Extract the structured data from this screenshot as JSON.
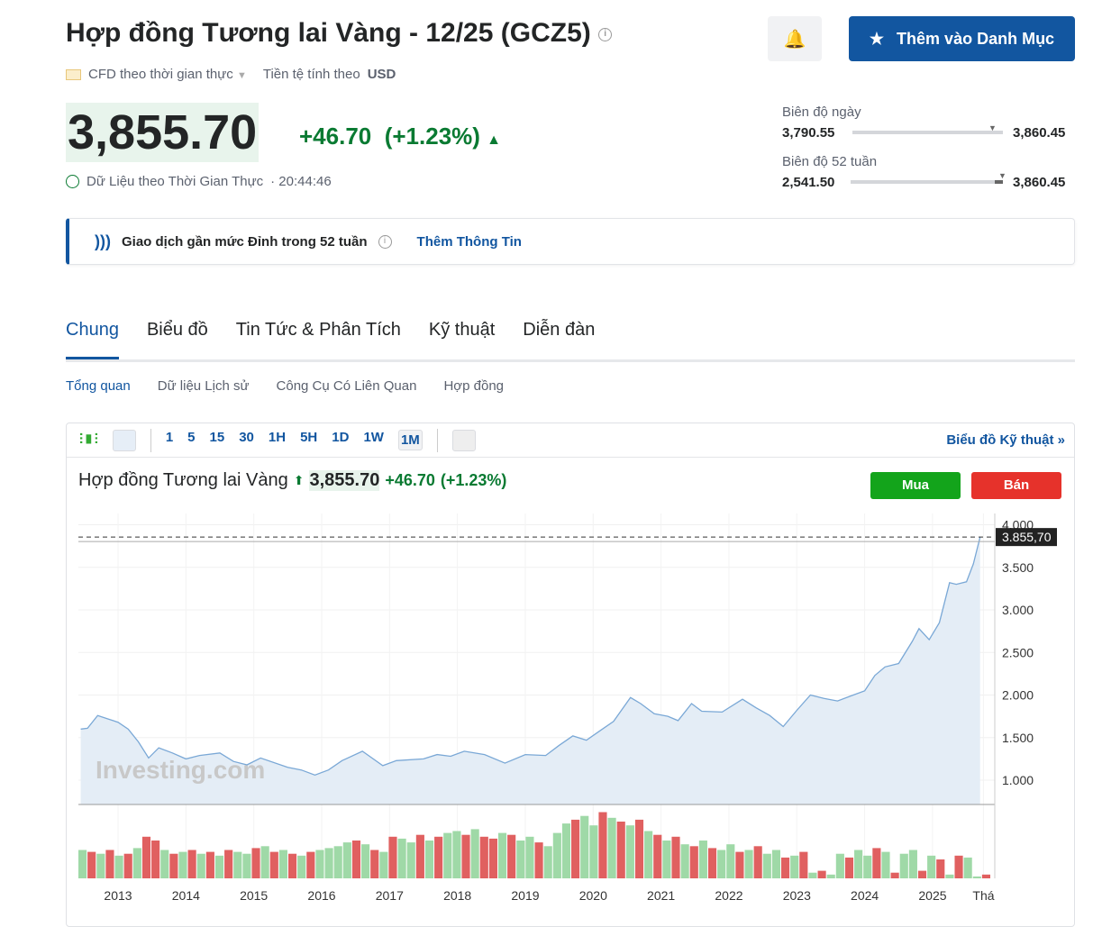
{
  "header": {
    "title": "Hợp đồng Tương lai Vàng - 12/25 (GCZ5)",
    "cfd_label": "CFD theo thời gian thực",
    "currency_label": "Tiền tệ tính theo",
    "currency": "USD",
    "watchlist_button": "Thêm vào Danh Mục"
  },
  "quote": {
    "price": "3,855.70",
    "change": "+46.70",
    "change_pct": "(+1.23%)",
    "realtime_label": "Dữ Liệu theo Thời Gian Thực",
    "time": "· 20:44:46"
  },
  "ranges": {
    "day_label": "Biên độ ngày",
    "day_low": "3,790.55",
    "day_high": "3,860.45",
    "day_position": 0.92,
    "week52_label": "Biên độ 52 tuần",
    "week52_low": "2,541.50",
    "week52_high": "3,860.45",
    "week52_position": 0.99
  },
  "alert": {
    "text": "Giao dịch gần mức Đỉnh trong 52 tuần",
    "link": "Thêm Thông Tin"
  },
  "tabs": [
    "Chung",
    "Biểu đồ",
    "Tin Tức & Phân Tích",
    "Kỹ thuật",
    "Diễn đàn"
  ],
  "subtabs": [
    "Tổng quan",
    "Dữ liệu Lịch sử",
    "Công Cụ Có Liên Quan",
    "Hợp đồng"
  ],
  "toolbar": {
    "intervals": [
      "1",
      "5",
      "15",
      "30",
      "1H",
      "5H",
      "1D",
      "1W",
      "1M"
    ],
    "selected": "1M",
    "tech_chart_link": "Biểu đồ Kỹ thuật »"
  },
  "chart_header": {
    "name": "Hợp đồng Tương lai Vàng",
    "price": "3,855.70",
    "change": "+46.70",
    "change_pct": "(+1.23%)",
    "buy": "Mua",
    "sell": "Bán"
  },
  "colors": {
    "accent": "#1256a0",
    "up": "#0a7a32",
    "buy": "#13a41b",
    "sell": "#e6322b",
    "line": "#7aa8d6",
    "area": "#e4edf6"
  },
  "chart_data": {
    "type": "area",
    "watermark": "Investing.com",
    "last_label": "3.855,70",
    "y_ticks": [
      "4.000",
      "3.500",
      "3.000",
      "2.500",
      "2.000",
      "1.500",
      "1.000"
    ],
    "y_tick_values": [
      4000,
      3500,
      3000,
      2500,
      2000,
      1500,
      1000
    ],
    "x_ticks": [
      "2013",
      "2014",
      "2015",
      "2016",
      "2017",
      "2018",
      "2019",
      "2020",
      "2021",
      "2022",
      "2023",
      "2024",
      "2025",
      "Thá"
    ],
    "x_tick_values": [
      2013,
      2014,
      2015,
      2016,
      2017,
      2018,
      2019,
      2020,
      2021,
      2022,
      2023,
      2024,
      2025,
      2025.75
    ],
    "price": [
      [
        2012.45,
        1600
      ],
      [
        2012.55,
        1610
      ],
      [
        2012.7,
        1760
      ],
      [
        2012.85,
        1720
      ],
      [
        2013.0,
        1680
      ],
      [
        2013.15,
        1600
      ],
      [
        2013.3,
        1450
      ],
      [
        2013.45,
        1260
      ],
      [
        2013.6,
        1380
      ],
      [
        2013.8,
        1320
      ],
      [
        2014.0,
        1250
      ],
      [
        2014.2,
        1290
      ],
      [
        2014.5,
        1320
      ],
      [
        2014.7,
        1220
      ],
      [
        2014.9,
        1180
      ],
      [
        2015.1,
        1260
      ],
      [
        2015.5,
        1150
      ],
      [
        2015.7,
        1120
      ],
      [
        2015.9,
        1060
      ],
      [
        2016.1,
        1120
      ],
      [
        2016.3,
        1230
      ],
      [
        2016.6,
        1340
      ],
      [
        2016.9,
        1170
      ],
      [
        2017.1,
        1230
      ],
      [
        2017.5,
        1250
      ],
      [
        2017.7,
        1300
      ],
      [
        2017.9,
        1280
      ],
      [
        2018.1,
        1340
      ],
      [
        2018.4,
        1300
      ],
      [
        2018.7,
        1200
      ],
      [
        2019.0,
        1300
      ],
      [
        2019.3,
        1290
      ],
      [
        2019.5,
        1410
      ],
      [
        2019.7,
        1520
      ],
      [
        2019.9,
        1470
      ],
      [
        2020.1,
        1580
      ],
      [
        2020.3,
        1690
      ],
      [
        2020.55,
        1970
      ],
      [
        2020.7,
        1900
      ],
      [
        2020.9,
        1780
      ],
      [
        2021.1,
        1750
      ],
      [
        2021.25,
        1700
      ],
      [
        2021.45,
        1900
      ],
      [
        2021.6,
        1810
      ],
      [
        2021.9,
        1800
      ],
      [
        2022.2,
        1950
      ],
      [
        2022.4,
        1850
      ],
      [
        2022.6,
        1760
      ],
      [
        2022.8,
        1630
      ],
      [
        2023.0,
        1820
      ],
      [
        2023.2,
        2000
      ],
      [
        2023.4,
        1960
      ],
      [
        2023.6,
        1930
      ],
      [
        2023.8,
        1990
      ],
      [
        2024.0,
        2050
      ],
      [
        2024.15,
        2230
      ],
      [
        2024.3,
        2330
      ],
      [
        2024.5,
        2370
      ],
      [
        2024.7,
        2630
      ],
      [
        2024.8,
        2780
      ],
      [
        2024.95,
        2650
      ],
      [
        2025.1,
        2850
      ],
      [
        2025.25,
        3320
      ],
      [
        2025.35,
        3300
      ],
      [
        2025.5,
        3330
      ],
      [
        2025.6,
        3540
      ],
      [
        2025.7,
        3855.7
      ]
    ],
    "volume": [
      30,
      28,
      26,
      30,
      24,
      26,
      32,
      44,
      40,
      30,
      26,
      28,
      30,
      26,
      28,
      24,
      30,
      28,
      26,
      32,
      34,
      28,
      30,
      26,
      24,
      28,
      30,
      32,
      34,
      38,
      40,
      36,
      30,
      28,
      44,
      42,
      38,
      46,
      40,
      44,
      48,
      50,
      46,
      52,
      44,
      42,
      48,
      46,
      40,
      44,
      38,
      34,
      48,
      58,
      62,
      66,
      56,
      70,
      64,
      60,
      56,
      62,
      50,
      46,
      40,
      44,
      36,
      34,
      40,
      32,
      30,
      36,
      28,
      30,
      34,
      26,
      30,
      22,
      24,
      28,
      6,
      8,
      4,
      26,
      22,
      30,
      24,
      32,
      28,
      6,
      26,
      30,
      8,
      24,
      20,
      4,
      24,
      22,
      2,
      4
    ],
    "volume_up": [
      1,
      0,
      1,
      0,
      1,
      0,
      1,
      0,
      0,
      1,
      0,
      1,
      0,
      1,
      0,
      1,
      0,
      1,
      1,
      0,
      1,
      0,
      1,
      0,
      1,
      0,
      1,
      1,
      1,
      1,
      0,
      1,
      0,
      1,
      0,
      1,
      1,
      0,
      1,
      0,
      1,
      1,
      0,
      1,
      0,
      0,
      1,
      0,
      1,
      1,
      0,
      1,
      1,
      1,
      0,
      1,
      1,
      0,
      1,
      0,
      1,
      0,
      1,
      0,
      1,
      0,
      1,
      0,
      1,
      0,
      1,
      1,
      0,
      1,
      0,
      1,
      1,
      0,
      1,
      0,
      1,
      0,
      1,
      1,
      0,
      1,
      1,
      0,
      1,
      0,
      1,
      1,
      0,
      1,
      0,
      1,
      0,
      1,
      1,
      0
    ]
  }
}
